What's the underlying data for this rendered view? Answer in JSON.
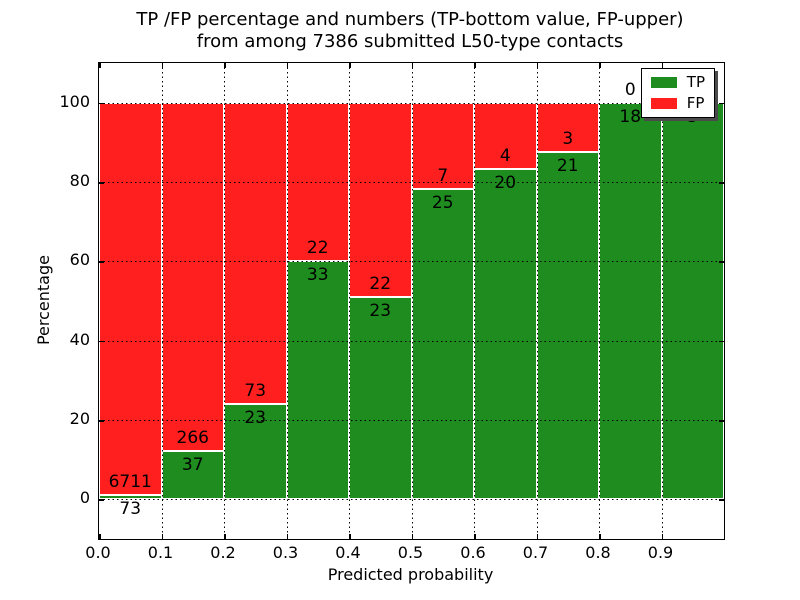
{
  "title": {
    "line1": "TP /FP percentage and numbers (TP-bottom value, FP-upper)",
    "line2": "from among 7386 submitted L50-type contacts"
  },
  "axes": {
    "xlabel": "Predicted probability",
    "ylabel": "Percentage",
    "ytick_labels": [
      "0",
      "20",
      "40",
      "60",
      "80",
      "100"
    ],
    "ytick_values": [
      0,
      20,
      40,
      60,
      80,
      100
    ],
    "xtick_labels": [
      "0.0",
      "0.1",
      "0.2",
      "0.3",
      "0.4",
      "0.5",
      "0.6",
      "0.7",
      "0.8",
      "0.9"
    ],
    "xtick_values": [
      0.0,
      0.1,
      0.2,
      0.3,
      0.4,
      0.5,
      0.6,
      0.7,
      0.8,
      0.9
    ],
    "ylim": [
      -10,
      110
    ],
    "xlim": [
      0.0,
      1.0
    ],
    "grid": "dotted black, horizontal at y ticks and vertical at x ticks"
  },
  "legend": {
    "position": "upper right",
    "items": [
      {
        "label": "TP",
        "color": "#1e8c1e"
      },
      {
        "label": "FP",
        "color": "#ff1f1f"
      }
    ]
  },
  "colors": {
    "tp_green": "#1e8c1e",
    "fp_red": "#ff1f1f",
    "bar_edge": "#ffffff",
    "text": "#000000",
    "background": "#ffffff"
  },
  "chart_data": {
    "type": "bar",
    "stacked": true,
    "title": "TP /FP percentage and numbers (TP-bottom value, FP-upper) from among 7386 submitted L50-type contacts",
    "xlabel": "Predicted probability",
    "ylabel": "Percentage",
    "total_contacts_shown_in_title": 7386,
    "bin_edges": [
      0.0,
      0.1,
      0.2,
      0.3,
      0.4,
      0.5,
      0.6,
      0.7,
      0.8,
      0.9,
      1.0
    ],
    "categories": [
      "0.0-0.1",
      "0.1-0.2",
      "0.2-0.3",
      "0.3-0.4",
      "0.4-0.5",
      "0.5-0.6",
      "0.6-0.7",
      "0.7-0.8",
      "0.8-0.9",
      "0.9-1.0"
    ],
    "series": [
      {
        "name": "TP",
        "color": "#1e8c1e",
        "counts": [
          73,
          37,
          23,
          33,
          23,
          25,
          20,
          21,
          18,
          5
        ]
      },
      {
        "name": "FP",
        "color": "#ff1f1f",
        "counts": [
          6711,
          266,
          73,
          22,
          22,
          7,
          4,
          3,
          0,
          null
        ]
      }
    ],
    "tp_labels": [
      "73",
      "37",
      "23",
      "33",
      "23",
      "25",
      "20",
      "21",
      "18",
      "5"
    ],
    "fp_labels": [
      "6711",
      "266",
      "73",
      "22",
      "22",
      "7",
      "4",
      "3",
      "0",
      null
    ],
    "tp_percent": [
      1.08,
      12.21,
      23.96,
      60.0,
      51.11,
      78.13,
      83.33,
      87.5,
      100.0,
      100.0
    ],
    "bar_total_percent": 100,
    "ylim": [
      -10,
      110
    ],
    "note": "last bin FP label hidden behind legend; last bin TP label partially covered by legend"
  }
}
